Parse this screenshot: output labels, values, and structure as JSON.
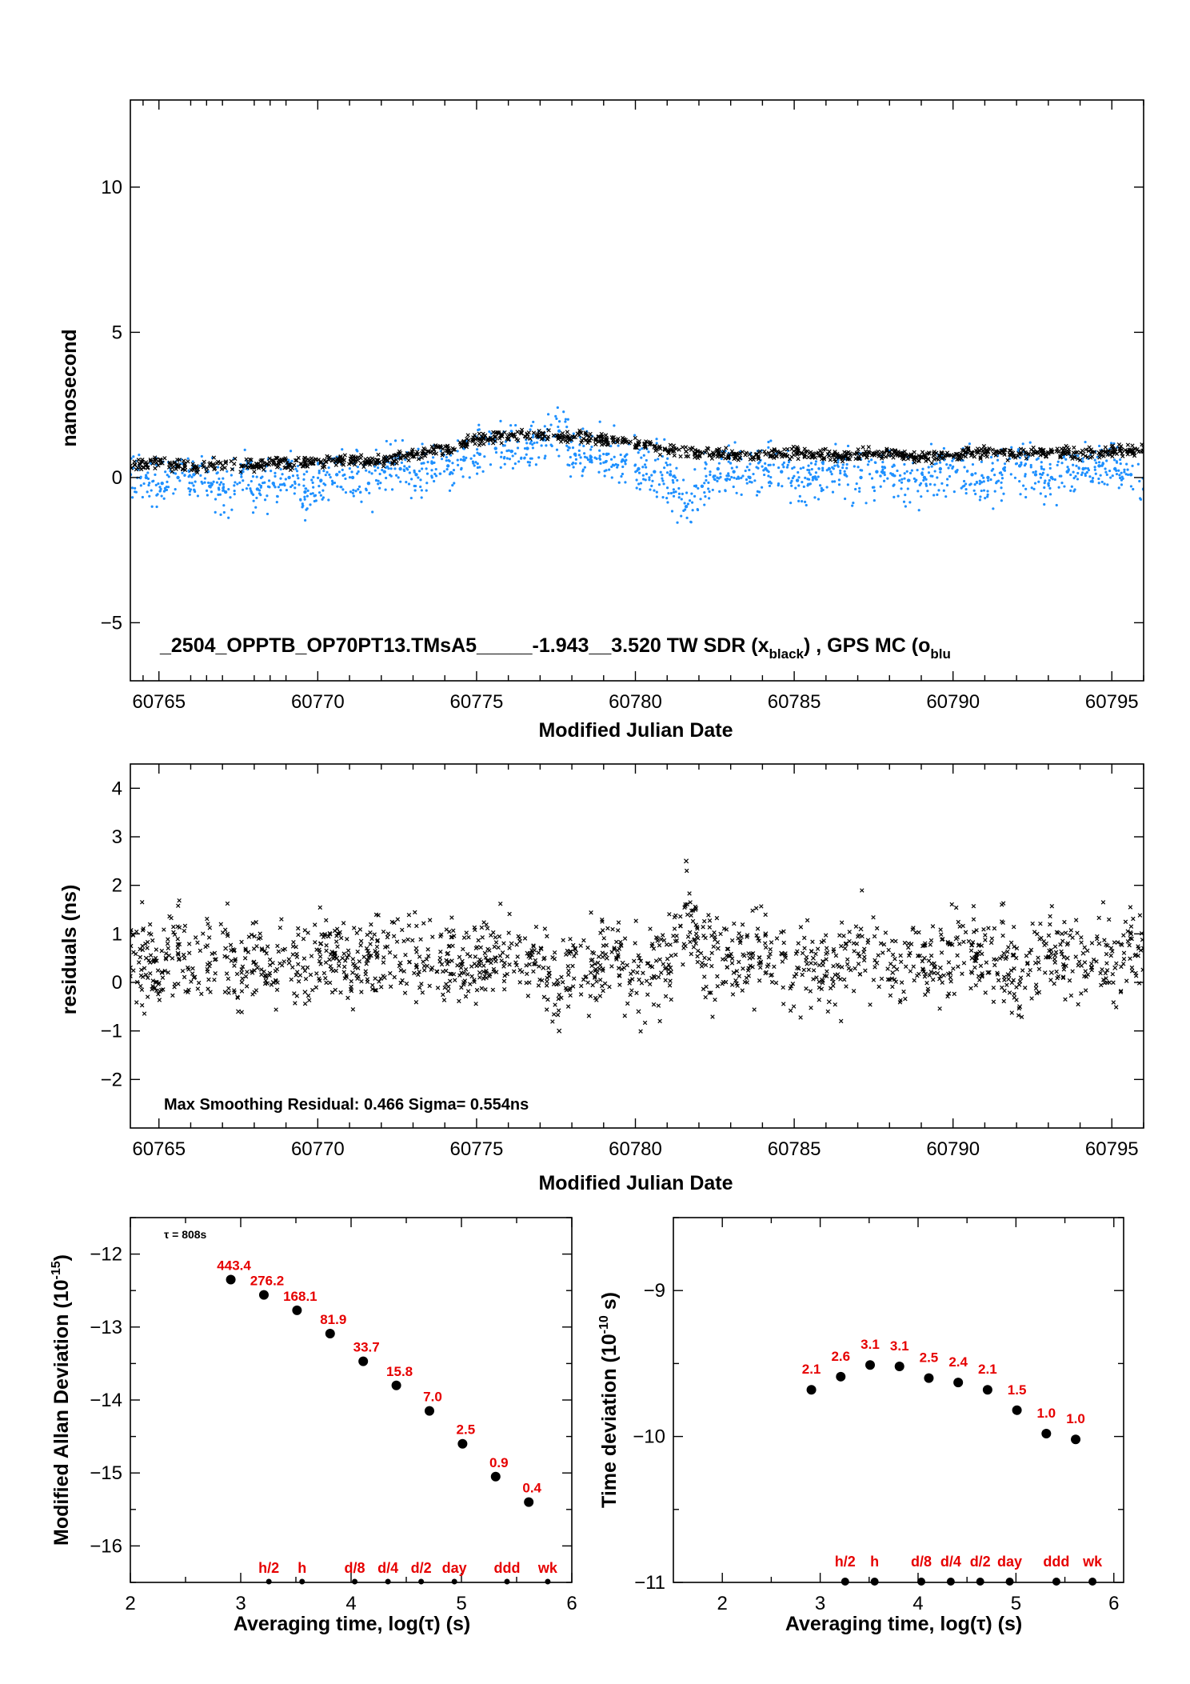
{
  "colors": {
    "black_series": "#000000",
    "blue_series": "#1e90ff",
    "red_labels": "#e60000"
  },
  "chart_data": [
    {
      "id": "timeseries",
      "type": "scatter",
      "title": "",
      "xlabel": "Modified Julian Date",
      "ylabel": "nanosecond",
      "xlim": [
        60764.1,
        60796.0
      ],
      "ylim": [
        -7,
        13
      ],
      "xticks": [
        60765,
        60770,
        60775,
        60780,
        60785,
        60790,
        60795
      ],
      "yticks": [
        -5,
        0,
        5,
        10
      ],
      "annotation": "_2504_OPPTB_OP70PT13.TMsA5_____-1.943__3.520     TW SDR (x",
      "annotation_sub1": "black",
      "annotation_mid": ") ,  GPS MC (o",
      "annotation_sub2": "blu",
      "series": [
        {
          "name": "TW SDR",
          "marker": "x",
          "color": "#000000",
          "x": [
            60764.1,
            60764.6,
            60765.1,
            60765.6,
            60766.1,
            60766.6,
            60767.1,
            60767.6,
            60768.1,
            60768.6,
            60769.1,
            60769.6,
            60770.1,
            60770.6,
            60771.1,
            60771.6,
            60772.1,
            60772.6,
            60773.1,
            60773.6,
            60774.1,
            60774.6,
            60775.1,
            60775.6,
            60776.1,
            60776.6,
            60777.1,
            60777.6,
            60778.1,
            60778.6,
            60779.1,
            60779.6,
            60780.1,
            60780.6,
            60781.1,
            60781.6,
            60782.1,
            60782.6,
            60783.1,
            60783.6,
            60784.1,
            60784.6,
            60785.1,
            60785.6,
            60786.1,
            60786.6,
            60787.1,
            60787.6,
            60788.1,
            60788.6,
            60789.1,
            60789.6,
            60790.1,
            60790.6,
            60791.1,
            60791.6,
            60792.1,
            60792.6,
            60793.1,
            60793.6,
            60794.1,
            60794.6,
            60795.1,
            60795.6,
            60796.0
          ],
          "y": [
            0.4,
            0.45,
            0.5,
            0.4,
            0.35,
            0.45,
            0.5,
            0.4,
            0.45,
            0.5,
            0.45,
            0.5,
            0.55,
            0.6,
            0.6,
            0.55,
            0.6,
            0.7,
            0.8,
            0.9,
            1.0,
            1.2,
            1.3,
            1.4,
            1.45,
            1.5,
            1.5,
            1.45,
            1.4,
            1.35,
            1.3,
            1.25,
            1.15,
            1.05,
            0.95,
            0.9,
            0.85,
            0.85,
            0.8,
            0.8,
            0.8,
            0.8,
            0.85,
            0.8,
            0.75,
            0.75,
            0.8,
            0.85,
            0.8,
            0.75,
            0.7,
            0.75,
            0.8,
            0.85,
            0.9,
            0.85,
            0.8,
            0.85,
            0.9,
            0.85,
            0.8,
            0.85,
            0.9,
            0.95,
            0.9
          ]
        },
        {
          "name": "GPS MC",
          "marker": "o",
          "color": "#1e90ff",
          "x": [
            60764.1,
            60764.6,
            60765.1,
            60765.6,
            60766.1,
            60766.6,
            60767.1,
            60767.6,
            60768.1,
            60768.6,
            60769.1,
            60769.6,
            60770.1,
            60770.6,
            60771.1,
            60771.6,
            60772.1,
            60772.6,
            60773.1,
            60773.6,
            60774.1,
            60774.6,
            60775.1,
            60775.6,
            60776.1,
            60776.6,
            60777.1,
            60777.6,
            60778.1,
            60778.6,
            60779.1,
            60779.6,
            60780.1,
            60780.6,
            60781.1,
            60781.6,
            60782.1,
            60782.6,
            60783.1,
            60783.6,
            60784.1,
            60784.6,
            60785.1,
            60785.6,
            60786.1,
            60786.6,
            60787.1,
            60787.6,
            60788.1,
            60788.6,
            60789.1,
            60789.6,
            60790.1,
            60790.6,
            60791.1,
            60791.6,
            60792.1,
            60792.6,
            60793.1,
            60793.6,
            60794.1,
            60794.6,
            60795.1,
            60795.6,
            60796.0
          ],
          "y": [
            0.1,
            0.0,
            -0.2,
            0.0,
            0.1,
            -0.3,
            -0.5,
            0.2,
            -0.4,
            -0.2,
            0.0,
            -0.5,
            -0.1,
            0.1,
            0.0,
            -0.2,
            0.2,
            0.3,
            0.1,
            0.5,
            0.4,
            0.6,
            0.8,
            1.0,
            0.9,
            1.0,
            1.3,
            1.6,
            0.8,
            0.7,
            0.8,
            0.6,
            0.3,
            0.2,
            0.1,
            -1.0,
            -0.3,
            0.3,
            0.2,
            0.0,
            0.3,
            0.2,
            -0.1,
            0.0,
            0.3,
            0.1,
            0.0,
            0.2,
            0.1,
            -0.1,
            0.0,
            0.3,
            0.2,
            0.1,
            0.0,
            0.3,
            0.4,
            0.1,
            0.0,
            0.2,
            0.3,
            0.4,
            0.3,
            0.1,
            -0.4
          ]
        }
      ]
    },
    {
      "id": "residuals",
      "type": "scatter",
      "xlabel": "Modified Julian Date",
      "ylabel": "residuals (ns)",
      "xlim": [
        60764.1,
        60796.0
      ],
      "ylim": [
        -3,
        4.5
      ],
      "xticks": [
        60765,
        60770,
        60775,
        60780,
        60785,
        60790,
        60795
      ],
      "yticks": [
        -2,
        -1,
        0,
        1,
        2,
        3,
        4
      ],
      "annotation": "Max Smoothing Residual: 0.466  Sigma= 0.554ns",
      "series": [
        {
          "name": "residuals",
          "marker": "x",
          "color": "#000000",
          "x": [
            60764.1,
            60764.6,
            60765.1,
            60765.6,
            60766.1,
            60766.6,
            60767.1,
            60767.5,
            60768.1,
            60768.6,
            60769.1,
            60769.6,
            60770.1,
            60770.6,
            60771.1,
            60771.6,
            60772.1,
            60772.6,
            60773.1,
            60773.6,
            60774.1,
            60774.6,
            60775.1,
            60775.6,
            60776.1,
            60776.6,
            60777.1,
            60777.6,
            60778.1,
            60778.6,
            60779.1,
            60779.6,
            60780.1,
            60780.6,
            60781.1,
            60781.6,
            60782.1,
            60782.6,
            60783.1,
            60783.6,
            60784.1,
            60784.6,
            60785.1,
            60785.6,
            60786.1,
            60786.6,
            60787.1,
            60787.6,
            60788.1,
            60788.6,
            60789.1,
            60789.6,
            60790.1,
            60790.6,
            60791.1,
            60791.6,
            60792.1,
            60792.6,
            60793.1,
            60793.6,
            60794.1,
            60794.6,
            60795.1,
            60795.6,
            60796.0
          ],
          "y": [
            0.3,
            0.5,
            0.2,
            0.6,
            0.1,
            0.4,
            0.7,
            -0.6,
            0.3,
            0.0,
            0.4,
            -0.2,
            0.8,
            0.5,
            0.2,
            0.6,
            0.1,
            0.4,
            0.7,
            0.3,
            0.6,
            0.0,
            0.2,
            0.5,
            0.8,
            0.6,
            0.3,
            -1.0,
            0.7,
            0.2,
            0.5,
            0.4,
            -0.6,
            0.1,
            0.3,
            2.5,
            0.4,
            0.7,
            0.2,
            0.5,
            1.0,
            0.6,
            0.3,
            0.5,
            -0.4,
            0.7,
            1.1,
            0.4,
            0.2,
            0.8,
            0.5,
            0.3,
            0.9,
            0.5,
            0.2,
            0.6,
            -0.5,
            0.4,
            0.2,
            0.5,
            0.6,
            0.8,
            0.3,
            1.0,
            0.7
          ]
        }
      ]
    },
    {
      "id": "mdev",
      "type": "scatter",
      "xlabel": "Averaging time, log(τ) (s)",
      "ylabel": "Modified Allan Deviation (10",
      "ylabel_sup": "-15",
      "ylabel_end": ")",
      "note": "τ = 808s",
      "xlim": [
        2,
        6
      ],
      "ylim": [
        -16.5,
        -11.5
      ],
      "xticks": [
        2,
        3,
        4,
        5,
        6
      ],
      "yticks": [
        -16,
        -15,
        -14,
        -13,
        -12
      ],
      "log_tau": [
        2.91,
        3.21,
        3.51,
        3.81,
        4.11,
        4.41,
        4.71,
        5.01,
        5.31,
        5.61
      ],
      "log_mdev": [
        -12.35,
        -12.56,
        -12.77,
        -13.09,
        -13.47,
        -13.8,
        -14.15,
        -14.6,
        -15.05,
        -15.4
      ],
      "labels": [
        "443.4",
        "276.2",
        "168.1",
        "81.9",
        "33.7",
        "15.8",
        "7.0",
        "2.5",
        "0.9",
        "0.4"
      ],
      "markers": [
        {
          "label": "h/2",
          "x": 3.255
        },
        {
          "label": "h",
          "x": 3.556
        },
        {
          "label": "d/8",
          "x": 4.033
        },
        {
          "label": "d/4",
          "x": 4.334
        },
        {
          "label": "d/2",
          "x": 4.635
        },
        {
          "label": "day",
          "x": 4.936
        },
        {
          "label": "ddd",
          "x": 5.413
        },
        {
          "label": "wk",
          "x": 5.782
        }
      ]
    },
    {
      "id": "tdev",
      "type": "scatter",
      "xlabel": "Averaging time, log(τ) (s)",
      "ylabel": "Time deviation (10",
      "ylabel_sup": "-10",
      "ylabel_end": " s)",
      "xlim": [
        1.5,
        6.1
      ],
      "ylim": [
        -11,
        -8.5
      ],
      "xticks": [
        2,
        3,
        4,
        5,
        6
      ],
      "yticks": [
        -11,
        -10,
        -9
      ],
      "log_tau": [
        2.91,
        3.21,
        3.51,
        3.81,
        4.11,
        4.41,
        4.71,
        5.01,
        5.31,
        5.61
      ],
      "log_tdev": [
        -9.68,
        -9.59,
        -9.51,
        -9.52,
        -9.6,
        -9.63,
        -9.68,
        -9.82,
        -9.98,
        -10.02
      ],
      "labels": [
        "2.1",
        "2.6",
        "3.1",
        "3.1",
        "2.5",
        "2.4",
        "2.1",
        "1.5",
        "1.0",
        "1.0"
      ],
      "markers": [
        {
          "label": "h/2",
          "x": 3.255
        },
        {
          "label": "h",
          "x": 3.556
        },
        {
          "label": "d/8",
          "x": 4.033
        },
        {
          "label": "d/4",
          "x": 4.334
        },
        {
          "label": "d/2",
          "x": 4.635
        },
        {
          "label": "day",
          "x": 4.936
        },
        {
          "label": "ddd",
          "x": 5.413
        },
        {
          "label": "wk",
          "x": 5.782
        }
      ]
    }
  ]
}
